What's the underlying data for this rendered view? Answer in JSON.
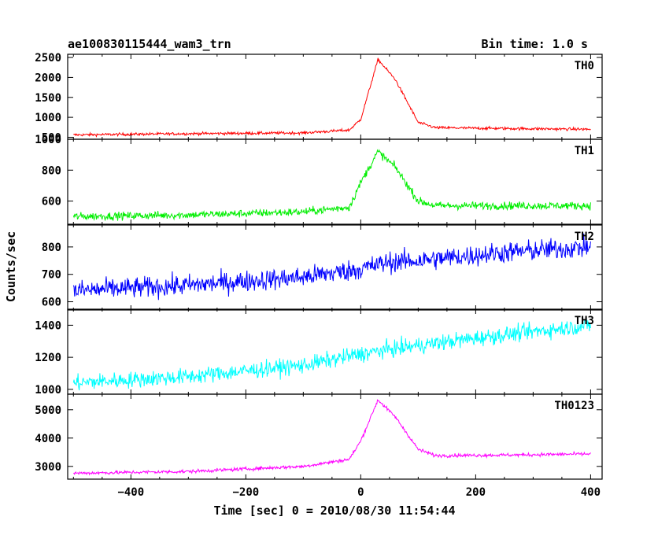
{
  "header": {
    "title": "ae100830115444_wam3_trn",
    "bin_time": "Bin time: 1.0 s"
  },
  "chart_data": {
    "type": "line",
    "xlabel": "Time [sec] 0 = 2010/08/30 11:54:44",
    "ylabel": "Counts/sec",
    "xlim": [
      -510,
      420
    ],
    "x_ticks": [
      -400,
      -200,
      0,
      200,
      400
    ],
    "x_tick_labels": [
      "−400",
      "−200",
      "0",
      "200",
      "400"
    ],
    "x_range": [
      -500,
      400
    ],
    "panels": [
      {
        "name": "TH0",
        "color": "#ff0000",
        "ylim": [
          450,
          2580
        ],
        "y_ticks": [
          500,
          1000,
          1500,
          2000,
          2500
        ],
        "y_tick_labels": [
          "500",
          "1000",
          "1500",
          "2000",
          "2500"
        ],
        "baseline": [
          [
            -500,
            560
          ],
          [
            -300,
            590
          ],
          [
            -100,
            610
          ],
          [
            -20,
            680
          ],
          [
            0,
            950
          ],
          [
            30,
            2450
          ],
          [
            60,
            1950
          ],
          [
            100,
            870
          ],
          [
            130,
            740
          ],
          [
            250,
            720
          ],
          [
            400,
            700
          ]
        ],
        "noise": 35
      },
      {
        "name": "TH1",
        "color": "#00ee00",
        "ylim": [
          450,
          1000
        ],
        "y_ticks": [
          600,
          800,
          1000
        ],
        "y_tick_labels": [
          "600",
          "800",
          "1000"
        ],
        "baseline": [
          [
            -500,
            500
          ],
          [
            -300,
            510
          ],
          [
            -100,
            530
          ],
          [
            -20,
            560
          ],
          [
            0,
            720
          ],
          [
            30,
            920
          ],
          [
            60,
            820
          ],
          [
            100,
            600
          ],
          [
            130,
            570
          ],
          [
            250,
            570
          ],
          [
            400,
            570
          ]
        ],
        "noise": 25
      },
      {
        "name": "TH2",
        "color": "#0000ff",
        "ylim": [
          570,
          880
        ],
        "y_ticks": [
          600,
          700,
          800
        ],
        "y_tick_labels": [
          "600",
          "700",
          "800"
        ],
        "baseline": [
          [
            -500,
            640
          ],
          [
            -300,
            660
          ],
          [
            -100,
            690
          ],
          [
            0,
            720
          ],
          [
            50,
            745
          ],
          [
            100,
            750
          ],
          [
            250,
            780
          ],
          [
            400,
            800
          ]
        ],
        "noise": 38
      },
      {
        "name": "TH3",
        "color": "#00ffff",
        "ylim": [
          970,
          1500
        ],
        "y_ticks": [
          1000,
          1200,
          1400
        ],
        "y_tick_labels": [
          "1000",
          "1200",
          "1400"
        ],
        "baseline": [
          [
            -500,
            1040
          ],
          [
            -300,
            1080
          ],
          [
            -100,
            1150
          ],
          [
            0,
            1220
          ],
          [
            50,
            1250
          ],
          [
            200,
            1320
          ],
          [
            400,
            1400
          ]
        ],
        "noise": 50
      },
      {
        "name": "TH0123",
        "color": "#ff00ff",
        "ylim": [
          2550,
          5550
        ],
        "y_ticks": [
          3000,
          4000,
          5000
        ],
        "y_tick_labels": [
          "3000",
          "4000",
          "5000"
        ],
        "baseline": [
          [
            -500,
            2760
          ],
          [
            -300,
            2820
          ],
          [
            -100,
            3000
          ],
          [
            -20,
            3250
          ],
          [
            0,
            3900
          ],
          [
            30,
            5350
          ],
          [
            60,
            4750
          ],
          [
            100,
            3600
          ],
          [
            130,
            3380
          ],
          [
            250,
            3400
          ],
          [
            400,
            3440
          ]
        ],
        "noise": 60
      }
    ]
  }
}
